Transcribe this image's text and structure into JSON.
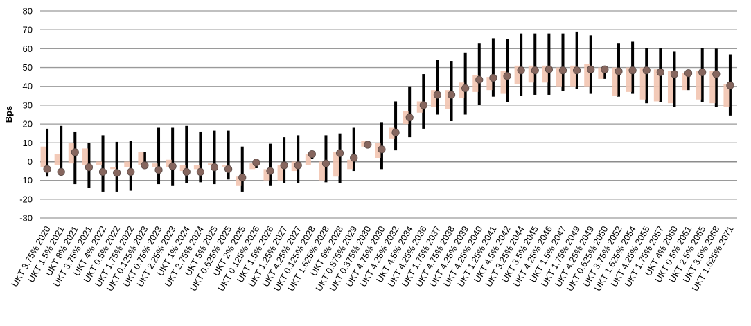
{
  "chart_data": {
    "type": "range_dot",
    "title": "",
    "xlabel": "",
    "ylabel": "Bps",
    "ylim": [
      -30,
      80
    ],
    "yticks": [
      -30,
      -20,
      -10,
      0,
      10,
      20,
      30,
      40,
      50,
      60,
      70,
      80
    ],
    "grid": true,
    "legend": "none",
    "categories": [
      "UKT 3.75% 2020",
      "UKT 1.5% 2021",
      "UKT 8% 2021",
      "UKT 3.75% 2021",
      "UKT 4% 2022",
      "UKT 0.5% 2022",
      "UKT 1.75% 2022",
      "UKT 0.125% 2023",
      "UKT 0.75% 2023",
      "UKT 2.25% 2023",
      "UKT 1% 2024",
      "UKT 2.75% 2024",
      "UKT 5% 2025",
      "UKT 0.625% 2025",
      "UKT 2% 2025",
      "UKT 0.125% 2026",
      "UKT 1.5% 2026",
      "UKT 1.25% 2027",
      "UKT 4.25% 2027",
      "UKT 0.125% 2028",
      "UKT 1.625% 2028",
      "UKT 6% 2028",
      "UKT 0.875% 2029",
      "UKT 0.375% 2030",
      "UKT 4.75% 2030",
      "UKT 4.25% 2032",
      "UKT 4.5% 2034",
      "UKT 4.25% 2036",
      "UKT 1.75% 2037",
      "UKT 4.75% 2038",
      "UKT 4.25% 2039",
      "UKT 4.25% 2040",
      "UKT 1.25% 2041",
      "UKT 4.5% 2042",
      "UKT 3.25% 2044",
      "UKT 3.5% 2045",
      "UKT 4.25% 2046",
      "UKT 1.5% 2047",
      "UKT 1.75% 2049",
      "UKT 4.25% 2049",
      "UKT 0.625% 2050",
      "UKT 3.75% 2052",
      "UKT 1.625% 2054",
      "UKT 4.25% 2055",
      "UKT 1.75% 2057",
      "UKT 4% 2060",
      "UKT 0.5% 2061",
      "UKT 2.5% 2065",
      "UKT 3.5% 2068",
      "UKT 1.625% 2071"
    ],
    "series": [
      {
        "role": "dot",
        "values": [
          -4,
          -5.5,
          5,
          -3,
          -5.5,
          -6,
          -5.5,
          -2,
          -4.5,
          -2.5,
          -5.5,
          -5.5,
          -3,
          -4,
          -8.5,
          -0.5,
          -5,
          -2,
          -2,
          4,
          -1,
          4.5,
          2,
          9,
          6.5,
          15.5,
          23.5,
          30,
          35.5,
          35.5,
          39,
          43.5,
          44.5,
          45.5,
          48.5,
          48.5,
          49,
          48.5,
          48.5,
          49,
          49,
          48,
          48.5,
          48.5,
          47.5,
          46.5,
          47,
          47.5,
          46.5,
          40.5
        ]
      },
      {
        "role": "range_wide",
        "low": [
          -8,
          -7.5,
          -12,
          -14,
          -16,
          -16,
          -15.5,
          -3,
          -12,
          -13,
          -11.5,
          -11,
          -12,
          -9.5,
          -16,
          -3.5,
          -13,
          -11.5,
          -11.5,
          1.5,
          -11,
          -11.5,
          -5,
          8,
          -4,
          6,
          13,
          17.5,
          25,
          21.5,
          25,
          30,
          34.5,
          31.5,
          35,
          35.5,
          35.5,
          37.5,
          38.5,
          36,
          44,
          34.5,
          36,
          31,
          31.5,
          29,
          38,
          31.5,
          29,
          24.5
        ],
        "high": [
          17.5,
          19,
          16,
          10,
          14,
          10.5,
          11,
          5,
          18,
          18,
          19,
          16,
          16.5,
          16.5,
          8,
          1,
          9.5,
          13,
          14,
          5,
          14,
          15,
          18,
          11,
          21,
          32,
          40,
          46.5,
          54,
          53.5,
          58,
          63,
          65.5,
          65,
          68,
          68,
          68,
          68,
          69,
          67,
          50,
          63,
          64,
          60.5,
          60.5,
          58.5,
          48,
          60.5,
          60,
          57
        ]
      },
      {
        "role": "range_narrow",
        "low": [
          -3,
          -2,
          -1,
          -2,
          -2,
          -4,
          -3,
          -2,
          -3,
          -3,
          -5,
          -4,
          -2,
          -2,
          -13,
          -4,
          -10,
          -10,
          -5,
          -2,
          -10,
          -8,
          -4,
          8,
          2,
          12,
          20,
          26,
          29,
          28,
          34,
          37,
          38,
          36,
          41,
          42,
          42,
          40,
          40,
          40,
          44,
          35,
          37,
          33,
          32,
          31,
          38,
          33,
          31,
          29
        ],
        "high": [
          8,
          4,
          10,
          7,
          0,
          -3,
          0,
          5,
          -1,
          1,
          -2,
          -2,
          -1,
          -2,
          -8,
          -1,
          -4,
          -2,
          0,
          4,
          0,
          5,
          1,
          11,
          10,
          18,
          27,
          32,
          38,
          38,
          42,
          46,
          45,
          48,
          51,
          51,
          51,
          50,
          51,
          52,
          50,
          50,
          50,
          50,
          49,
          48,
          47,
          48,
          48,
          41
        ]
      }
    ]
  }
}
